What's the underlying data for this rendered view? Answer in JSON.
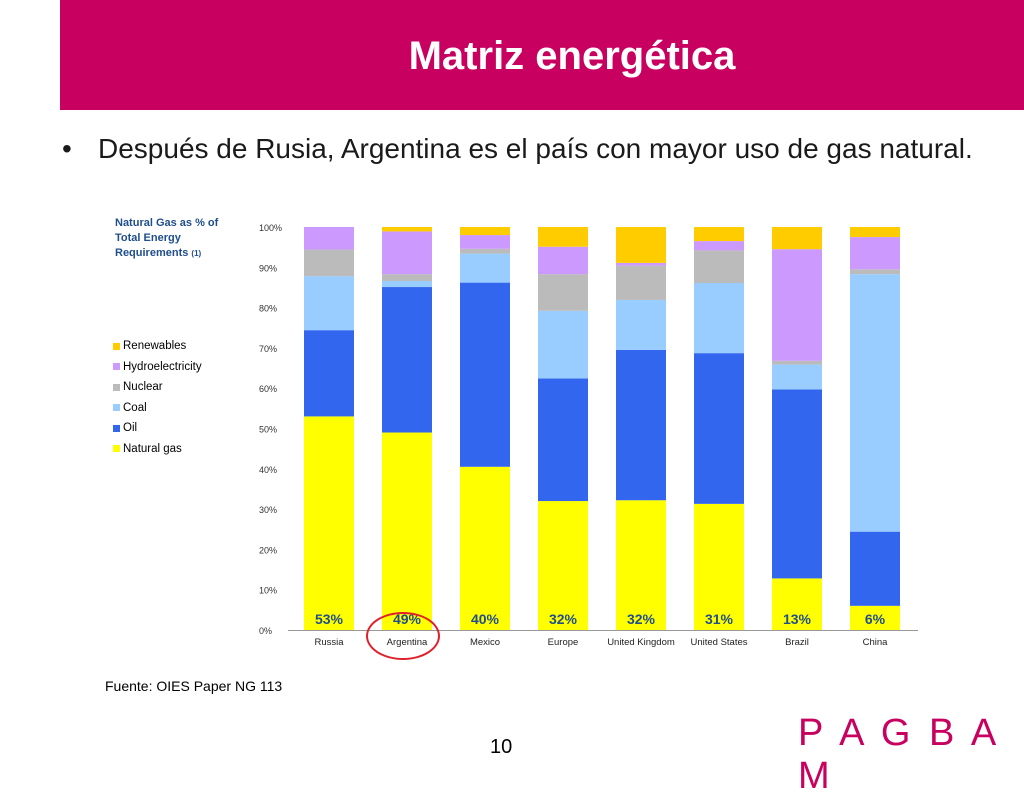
{
  "slide": {
    "title": "Matriz energética",
    "bullet": "Después de Rusia, Argentina es el país con mayor uso de gas natural.",
    "source": "Fuente: OIES Paper NG 113",
    "page_number": "10",
    "logo": "PAGBAM",
    "brand_color": "#c8005f"
  },
  "chart_data": {
    "type": "bar",
    "stacked": true,
    "title": "Natural Gas as % of Total Energy Requirements",
    "title_note": "(1)",
    "categories": [
      "Russia",
      "Argentina",
      "Mexico",
      "Europe",
      "United Kingdom",
      "United States",
      "Brazil",
      "China"
    ],
    "y_ticks": [
      "0%",
      "10%",
      "20%",
      "30%",
      "40%",
      "50%",
      "60%",
      "70%",
      "80%",
      "90%",
      "100%"
    ],
    "ylim": [
      0,
      100
    ],
    "grid": false,
    "legend_position": "left",
    "series": [
      {
        "name": "Natural gas",
        "color": "#ffff00",
        "values": [
          53,
          49,
          40.5,
          32,
          32.2,
          31.3,
          12.8,
          6
        ]
      },
      {
        "name": "Oil",
        "color": "#3366ee",
        "values": [
          21.4,
          36.1,
          45.7,
          30.4,
          37.3,
          37.4,
          46.9,
          18.4
        ]
      },
      {
        "name": "Coal",
        "color": "#99ccff",
        "values": [
          13.4,
          1.5,
          7.2,
          16.8,
          12.4,
          17.4,
          6.2,
          63.9
        ]
      },
      {
        "name": "Nuclear",
        "color": "#bbbbbb",
        "values": [
          6.6,
          1.7,
          1.2,
          9.1,
          8.5,
          8.1,
          0.9,
          1.2
        ]
      },
      {
        "name": "Hydroelectricity",
        "color": "#cc99ff",
        "values": [
          5.6,
          10.6,
          3.4,
          6.8,
          0.7,
          2.3,
          27.7,
          8
        ]
      },
      {
        "name": "Renewables",
        "color": "#ffcc00",
        "values": [
          0,
          1.1,
          2,
          4.9,
          8.9,
          3.5,
          5.5,
          2.5
        ]
      }
    ],
    "data_labels": [
      "53%",
      "49%",
      "40%",
      "32%",
      "32%",
      "31%",
      "13%",
      "6%"
    ],
    "highlighted_category": "Argentina"
  }
}
